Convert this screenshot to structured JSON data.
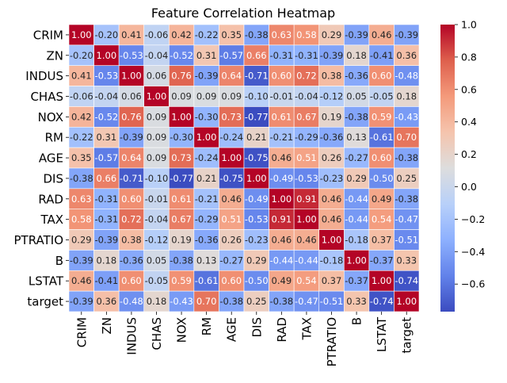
{
  "chart_data": {
    "type": "heatmap",
    "title": "Feature Correlation Heatmap",
    "xlabel": "",
    "ylabel": "",
    "labels": [
      "CRIM",
      "ZN",
      "INDUS",
      "CHAS",
      "NOX",
      "RM",
      "AGE",
      "DIS",
      "RAD",
      "TAX",
      "PTRATIO",
      "B",
      "LSTAT",
      "target"
    ],
    "cell_text": [
      [
        "1.00",
        "-0.20",
        "0.41",
        "-0.06",
        "0.42",
        "-0.22",
        "0.35",
        "-0.38",
        "0.63",
        "0.58",
        "0.29",
        "-0.39",
        "0.46",
        "-0.39"
      ],
      [
        "-0.20",
        "1.00",
        "-0.53",
        "-0.04",
        "-0.52",
        "0.31",
        "-0.57",
        "0.66",
        "-0.31",
        "-0.31",
        "-0.39",
        "0.18",
        "-0.41",
        "0.36"
      ],
      [
        "0.41",
        "-0.53",
        "1.00",
        "0.06",
        "0.76",
        "-0.39",
        "0.64",
        "-0.71",
        "0.60",
        "0.72",
        "0.38",
        "-0.36",
        "0.60",
        "-0.48"
      ],
      [
        "-0.06",
        "-0.04",
        "0.06",
        "1.00",
        "0.09",
        "0.09",
        "0.09",
        "-0.10",
        "-0.01",
        "-0.04",
        "-0.12",
        "0.05",
        "-0.05",
        "0.18"
      ],
      [
        "0.42",
        "-0.52",
        "0.76",
        "0.09",
        "1.00",
        "-0.30",
        "0.73",
        "-0.77",
        "0.61",
        "0.67",
        "0.19",
        "-0.38",
        "0.59",
        "-0.43"
      ],
      [
        "-0.22",
        "0.31",
        "-0.39",
        "0.09",
        "-0.30",
        "1.00",
        "-0.24",
        "0.21",
        "-0.21",
        "-0.29",
        "-0.36",
        "0.13",
        "-0.61",
        "0.70"
      ],
      [
        "0.35",
        "-0.57",
        "0.64",
        "0.09",
        "0.73",
        "-0.24",
        "1.00",
        "-0.75",
        "0.46",
        "0.51",
        "0.26",
        "-0.27",
        "0.60",
        "-0.38"
      ],
      [
        "-0.38",
        "0.66",
        "-0.71",
        "-0.10",
        "-0.77",
        "0.21",
        "-0.75",
        "1.00",
        "-0.49",
        "-0.53",
        "-0.23",
        "0.29",
        "-0.50",
        "0.25"
      ],
      [
        "0.63",
        "-0.31",
        "0.60",
        "-0.01",
        "0.61",
        "-0.21",
        "0.46",
        "-0.49",
        "1.00",
        "0.91",
        "0.46",
        "-0.44",
        "0.49",
        "-0.38"
      ],
      [
        "0.58",
        "-0.31",
        "0.72",
        "-0.04",
        "0.67",
        "-0.29",
        "0.51",
        "-0.53",
        "0.91",
        "1.00",
        "0.46",
        "-0.44",
        "0.54",
        "-0.47"
      ],
      [
        "0.29",
        "-0.39",
        "0.38",
        "-0.12",
        "0.19",
        "-0.36",
        "0.26",
        "-0.23",
        "0.46",
        "0.46",
        "1.00",
        "-0.18",
        "0.37",
        "-0.51"
      ],
      [
        "-0.39",
        "0.18",
        "-0.36",
        "0.05",
        "-0.38",
        "0.13",
        "-0.27",
        "0.29",
        "-0.44",
        "-0.44",
        "-0.18",
        "1.00",
        "-0.37",
        "0.33"
      ],
      [
        "0.46",
        "-0.41",
        "0.60",
        "-0.05",
        "0.59",
        "-0.61",
        "0.60",
        "-0.50",
        "0.49",
        "0.54",
        "0.37",
        "-0.37",
        "1.00",
        "-0.74"
      ],
      [
        "-0.39",
        "0.36",
        "-0.48",
        "0.18",
        "-0.43",
        "0.70",
        "-0.38",
        "0.25",
        "-0.38",
        "-0.47",
        "-0.51",
        "0.33",
        "-0.74",
        "1.00"
      ]
    ],
    "colorbar": {
      "colormap": "coolwarm",
      "range": [
        -0.77,
        1.0
      ],
      "ticks": [
        "1.0",
        "0.8",
        "0.6",
        "0.4",
        "0.2",
        "0.0",
        "−0.2",
        "−0.4",
        "−0.6"
      ]
    },
    "grid": true
  }
}
